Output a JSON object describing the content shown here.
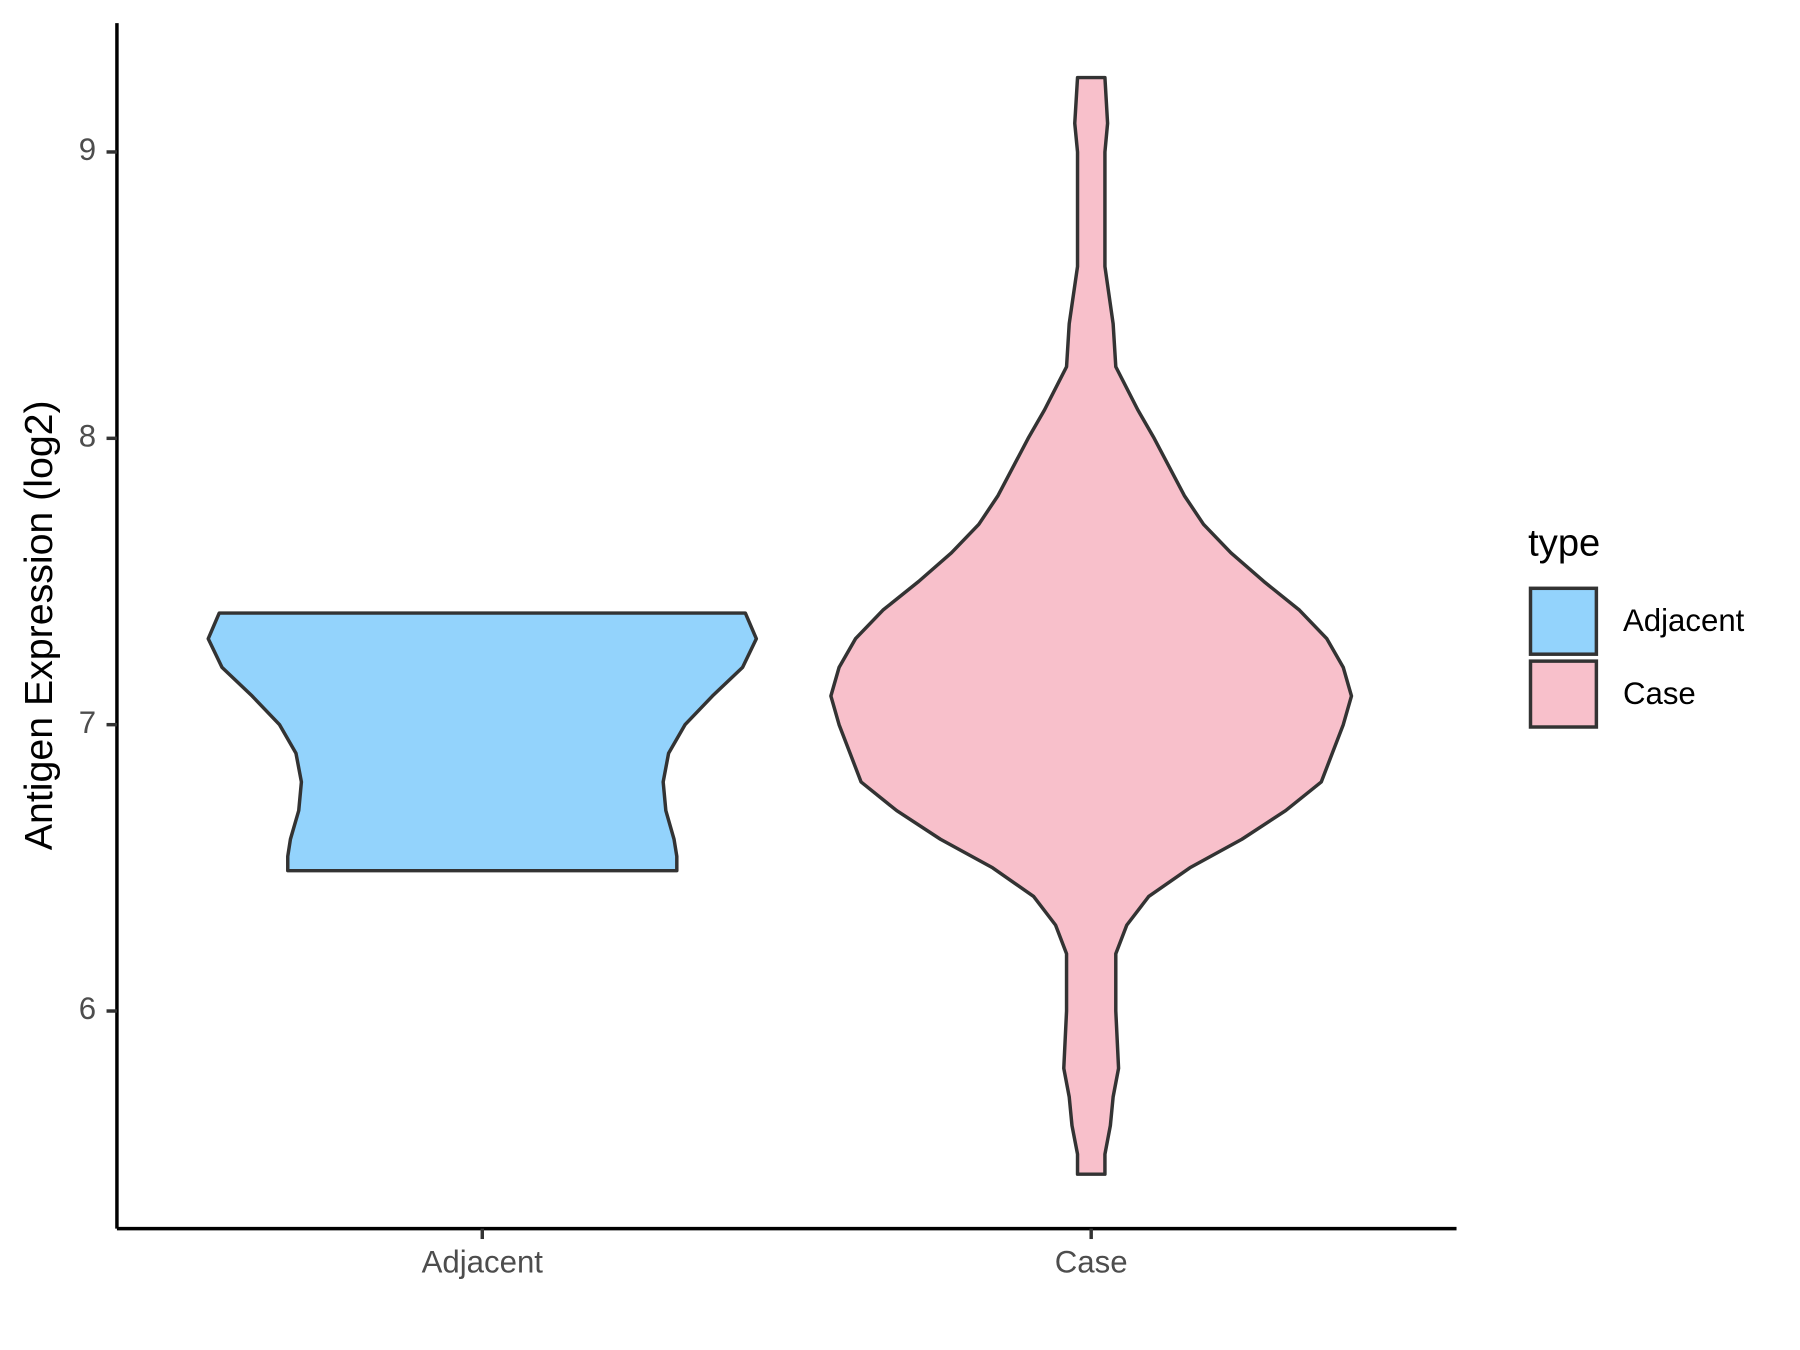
{
  "chart_data": {
    "type": "violin",
    "ylabel": "Antigen Expression (log2)",
    "categories": [
      "Adjacent",
      "Case"
    ],
    "ylim": [
      5.24,
      9.45
    ],
    "yticks": [
      6,
      7,
      8,
      9
    ],
    "legend_title": "type",
    "legend_position": "right",
    "grid": false,
    "series": [
      {
        "name": "Adjacent",
        "color": "#93d3fc",
        "y": [
          7.39,
          7.3,
          7.2,
          7.1,
          7.0,
          6.9,
          6.8,
          6.7,
          6.6,
          6.54,
          6.49
        ],
        "density": [
          0.96,
          1.0,
          0.95,
          0.84,
          0.74,
          0.68,
          0.66,
          0.67,
          0.7,
          0.71,
          0.71
        ]
      },
      {
        "name": "Case",
        "color": "#f8c0cb",
        "y": [
          9.26,
          9.1,
          9.0,
          8.9,
          8.6,
          8.4,
          8.25,
          8.1,
          8.0,
          7.8,
          7.7,
          7.6,
          7.5,
          7.4,
          7.3,
          7.2,
          7.1,
          7.0,
          6.9,
          6.8,
          6.7,
          6.6,
          6.5,
          6.4,
          6.3,
          6.2,
          6.1,
          6.0,
          5.8,
          5.7,
          5.6,
          5.5,
          5.43
        ],
        "density": [
          0.05,
          0.06,
          0.05,
          0.05,
          0.05,
          0.08,
          0.09,
          0.17,
          0.23,
          0.34,
          0.41,
          0.51,
          0.63,
          0.76,
          0.86,
          0.92,
          0.95,
          0.92,
          0.88,
          0.84,
          0.71,
          0.55,
          0.36,
          0.21,
          0.13,
          0.09,
          0.09,
          0.09,
          0.1,
          0.08,
          0.07,
          0.05,
          0.05
        ]
      }
    ]
  }
}
